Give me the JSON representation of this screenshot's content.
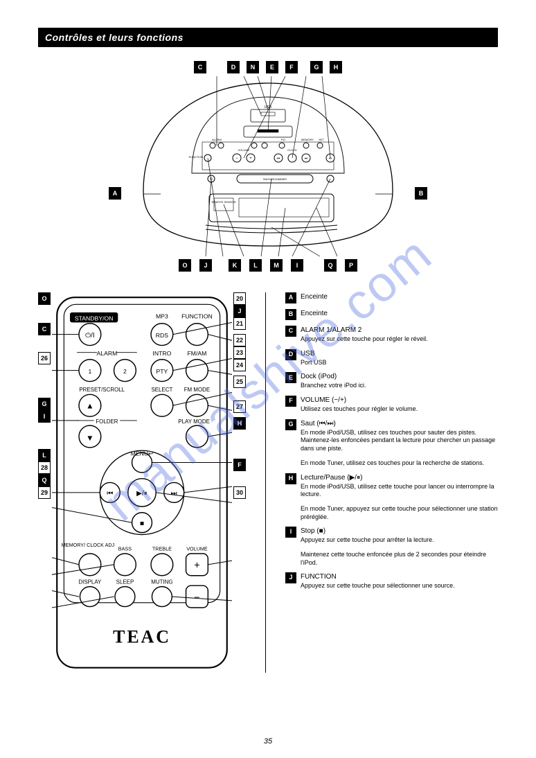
{
  "header_title": "Contrôles et leurs fonctions",
  "watermark": "manualshive.com",
  "page_number": "35",
  "device": {
    "top_callouts": [
      "C",
      "D",
      "N",
      "E",
      "F",
      "G",
      "H"
    ],
    "left_callout": "A",
    "right_callout": "B",
    "bottom_callouts": [
      "O",
      "J",
      "K",
      "L",
      "M",
      "I",
      "Q",
      "P"
    ],
    "panel_labels": {
      "usb": "USB",
      "function": "FUNCTION",
      "alarm1": "1",
      "alarm2": "2",
      "alarm": "ALARM",
      "volume": "VOLUME",
      "minus": "−",
      "plus": "+",
      "pd": "P.D",
      "clock": "CLOCK",
      "memory": "MEMORY",
      "set": "SET",
      "prev": "⏮",
      "next": "⏭",
      "playpause": "⏯",
      "power": "⏻",
      "snooze": "SNOOZE/DIMMER",
      "remote_sensor": "REMOTE\nSENSOR"
    }
  },
  "remote": {
    "brand": "TEAC",
    "rows": [
      {
        "labels_above": [
          "STANDBY/ON",
          "",
          "MP3",
          "FUNCTION"
        ],
        "labels_below": [
          "",
          "",
          "RDS",
          ""
        ],
        "btn_faces": [
          "⏻/I",
          "",
          "○",
          "○"
        ],
        "cols": [
          0,
          2,
          3
        ]
      },
      {
        "labels_above": [
          "",
          "ALARM",
          "INTRO",
          "FM/AM"
        ],
        "labels_below": [
          "",
          "",
          "PTY",
          ""
        ],
        "btn_faces": [
          "1",
          "2",
          "○",
          "○"
        ],
        "cols": [
          0,
          1,
          2,
          3
        ]
      },
      {
        "labels_above": [
          "PRESET/SCROLL",
          "",
          "SELECT",
          "FM MODE"
        ],
        "labels_below": [
          "",
          "",
          "",
          ""
        ],
        "btn_faces": [
          "▲",
          "",
          "○",
          "○"
        ],
        "cols": [
          0,
          2,
          3
        ]
      },
      {
        "labels_above": [
          "",
          "FOLDER",
          "",
          "PLAY MODE"
        ],
        "labels_below": [
          "",
          "",
          "",
          ""
        ],
        "btn_faces": [
          "▼",
          "",
          "",
          "○"
        ],
        "cols": [
          0,
          3
        ]
      },
      {
        "nav": true,
        "center": "▶/⏸",
        "up": "MENU↩",
        "left": "⏮",
        "right": "⏭",
        "down": "■"
      },
      {
        "labels_above": [
          "MEMORY/\nCLOCK ADJ",
          "BASS",
          "TREBLE",
          "VOLUME"
        ],
        "btn_faces": [
          "○",
          "○",
          "○",
          "+"
        ],
        "cols": [
          0,
          1,
          2,
          3
        ]
      },
      {
        "labels_above": [
          "DISPLAY",
          "SLEEP",
          "MUTING",
          ""
        ],
        "btn_faces": [
          "○",
          "○",
          "○",
          "−"
        ],
        "cols": [
          0,
          1,
          2,
          3
        ]
      }
    ],
    "left_callouts": [
      {
        "n": "O",
        "style": "solid",
        "gap": 6
      },
      {
        "n": "",
        "style": "spacer",
        "gap": 20
      },
      {
        "n": "C",
        "style": "solid",
        "gap": 6
      },
      {
        "n": "",
        "style": "spacer",
        "gap": 18
      },
      {
        "n": "26",
        "style": "hollow",
        "gap": 6
      },
      {
        "n": "",
        "style": "spacer",
        "gap": 42
      },
      {
        "n": "G",
        "style": "solid",
        "gap": 0
      },
      {
        "n": "I",
        "style": "solid",
        "gap": 6
      },
      {
        "n": "",
        "style": "spacer",
        "gap": 32
      },
      {
        "n": "L",
        "style": "solid",
        "gap": 0
      },
      {
        "n": "28",
        "style": "hollow",
        "gap": 0
      },
      {
        "n": "Q",
        "style": "solid",
        "gap": 0
      },
      {
        "n": "29",
        "style": "hollow",
        "gap": 6
      }
    ],
    "right_callouts": [
      {
        "n": "20",
        "style": "hollow",
        "gap": 0
      },
      {
        "n": "J",
        "style": "solid",
        "gap": 0
      },
      {
        "n": "21",
        "style": "hollow",
        "gap": 6
      },
      {
        "n": "22",
        "style": "hollow",
        "gap": 0
      },
      {
        "n": "23",
        "style": "hollow",
        "gap": 0
      },
      {
        "n": "24",
        "style": "hollow",
        "gap": 6
      },
      {
        "n": "25",
        "style": "hollow",
        "gap": 0
      },
      {
        "n": "",
        "style": "spacer",
        "gap": 18
      },
      {
        "n": "27",
        "style": "hollow",
        "gap": 6
      },
      {
        "n": "H",
        "style": "solid",
        "gap": 6
      },
      {
        "n": "",
        "style": "spacer",
        "gap": 36
      },
      {
        "n": "F",
        "style": "solid",
        "gap": 0
      },
      {
        "n": "",
        "style": "spacer",
        "gap": 22
      },
      {
        "n": "30",
        "style": "hollow",
        "gap": 6
      }
    ]
  },
  "descriptions": [
    {
      "n": "A",
      "style": "solid",
      "title": "Enceinte"
    },
    {
      "n": "B",
      "style": "solid",
      "title": "Enceinte"
    },
    {
      "n": "C",
      "style": "solid",
      "title": "ALARM 1/ALARM 2",
      "sub": "Appuyez sur cette touche pour régler le réveil."
    },
    {
      "n": "D",
      "style": "solid",
      "title": "USB",
      "sub": "Port USB"
    },
    {
      "n": "E",
      "style": "solid",
      "title": "Dock (iPod)",
      "sub": "Branchez votre iPod ici."
    },
    {
      "n": "F",
      "style": "solid",
      "title": "VOLUME (−/+)",
      "sub": "Utilisez ces touches pour régler le volume."
    },
    {
      "n": "G",
      "style": "solid",
      "title": "Saut (⏮/⏭)",
      "sub": "En mode iPod/USB, utilisez ces touches pour sauter des pistes. Maintenez-les enfoncées pendant la lecture pour chercher un passage dans une piste."
    },
    {
      "n": "",
      "style": "none",
      "title": "",
      "sub": "En mode Tuner, utilisez ces touches pour la recherche de stations."
    },
    {
      "n": "H",
      "style": "solid",
      "title": "Lecture/Pause (▶/⏸)",
      "sub": "En mode iPod/USB, utilisez cette touche pour lancer ou interrompre la lecture."
    },
    {
      "n": "",
      "style": "none",
      "title": "",
      "sub": "En mode Tuner, appuyez sur cette touche pour sélectionner une station préréglée."
    },
    {
      "n": "I",
      "style": "solid",
      "title": "Stop (■)",
      "sub": "Appuyez sur cette touche pour arrêter la lecture."
    },
    {
      "n": "",
      "style": "none",
      "title": "",
      "sub": "Maintenez cette touche enfoncée plus de 2 secondes pour éteindre l'iPod."
    },
    {
      "n": "J",
      "style": "solid",
      "title": "FUNCTION",
      "sub": "Appuyez sur cette touche pour sélectionner une source."
    }
  ],
  "colors": {
    "black": "#000000",
    "white": "#ffffff",
    "watermark": "rgba(70,100,220,0.35)"
  }
}
